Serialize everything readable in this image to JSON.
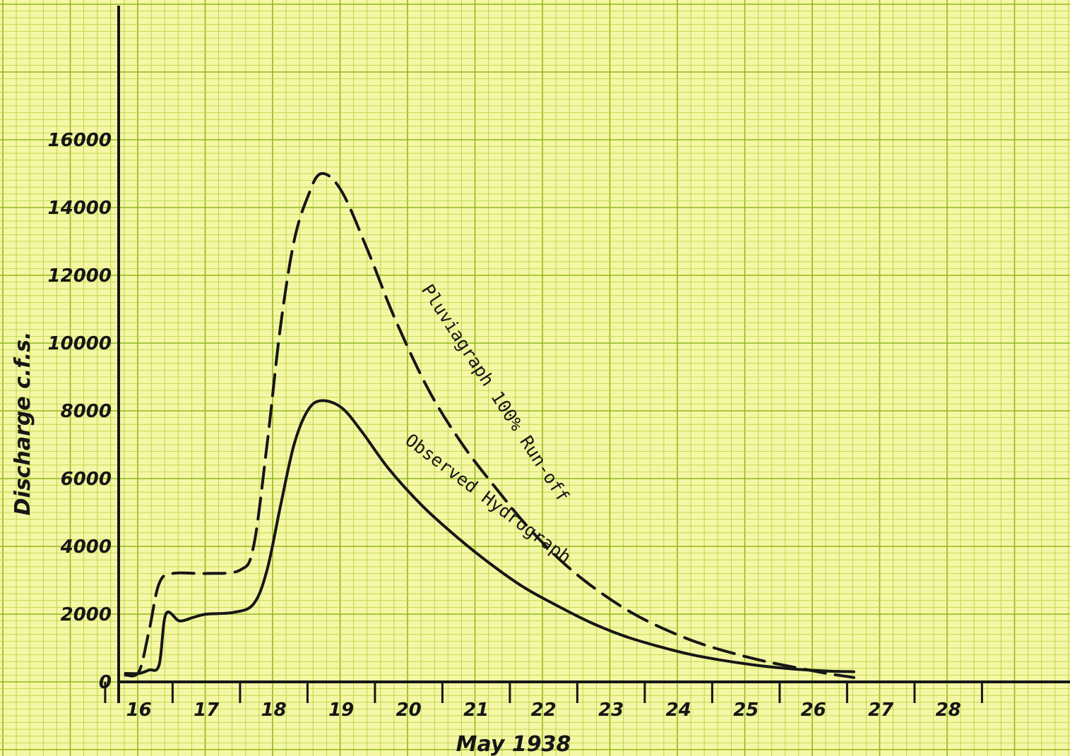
{
  "chart_data": {
    "type": "line",
    "title": "",
    "xlabel": "May 1938",
    "ylabel": "Discharge c.f.s.",
    "x_tick_labels": [
      "16",
      "17",
      "18",
      "19",
      "20",
      "21",
      "22",
      "23",
      "24",
      "25",
      "26",
      "27",
      "28"
    ],
    "y_tick_labels": [
      "0",
      "2000",
      "4000",
      "6000",
      "8000",
      "10000",
      "12000",
      "14000",
      "16000"
    ],
    "xlim": [
      15.7,
      29.0
    ],
    "ylim": [
      0,
      17000
    ],
    "grid": true,
    "legend": "none (curves labelled directly)",
    "colors": {
      "paper": "#f4f7a6",
      "grid_minor": "#b9d13f",
      "grid_major": "#93b61c",
      "ink": "#161616"
    },
    "series": [
      {
        "name": "Pluviagraph 100% Run-off",
        "style": "dashed",
        "points": [
          [
            15.8,
            200
          ],
          [
            16.0,
            300
          ],
          [
            16.15,
            1500
          ],
          [
            16.3,
            2900
          ],
          [
            16.5,
            3200
          ],
          [
            17.0,
            3200
          ],
          [
            17.5,
            3300
          ],
          [
            17.7,
            4000
          ],
          [
            17.9,
            7000
          ],
          [
            18.1,
            10500
          ],
          [
            18.3,
            13000
          ],
          [
            18.5,
            14300
          ],
          [
            18.7,
            15000
          ],
          [
            19.0,
            14500
          ],
          [
            19.4,
            12700
          ],
          [
            19.8,
            10700
          ],
          [
            20.3,
            8600
          ],
          [
            20.8,
            7000
          ],
          [
            21.3,
            5700
          ],
          [
            21.8,
            4500
          ],
          [
            22.3,
            3500
          ],
          [
            22.8,
            2700
          ],
          [
            23.3,
            2050
          ],
          [
            23.8,
            1550
          ],
          [
            24.3,
            1150
          ],
          [
            24.8,
            850
          ],
          [
            25.3,
            600
          ],
          [
            25.8,
            400
          ],
          [
            26.2,
            250
          ],
          [
            26.6,
            130
          ]
        ]
      },
      {
        "name": "Observed Hydrograph",
        "style": "solid",
        "points": [
          [
            15.8,
            250
          ],
          [
            16.0,
            250
          ],
          [
            16.15,
            350
          ],
          [
            16.3,
            500
          ],
          [
            16.4,
            2000
          ],
          [
            16.6,
            1800
          ],
          [
            16.8,
            1900
          ],
          [
            17.0,
            2000
          ],
          [
            17.4,
            2050
          ],
          [
            17.7,
            2300
          ],
          [
            17.9,
            3300
          ],
          [
            18.1,
            5200
          ],
          [
            18.3,
            7000
          ],
          [
            18.5,
            8000
          ],
          [
            18.7,
            8300
          ],
          [
            19.0,
            8100
          ],
          [
            19.3,
            7400
          ],
          [
            19.7,
            6300
          ],
          [
            20.2,
            5200
          ],
          [
            20.7,
            4300
          ],
          [
            21.2,
            3500
          ],
          [
            21.7,
            2800
          ],
          [
            22.2,
            2250
          ],
          [
            22.7,
            1750
          ],
          [
            23.2,
            1350
          ],
          [
            23.7,
            1050
          ],
          [
            24.2,
            800
          ],
          [
            24.7,
            620
          ],
          [
            25.2,
            480
          ],
          [
            25.7,
            380
          ],
          [
            26.2,
            320
          ],
          [
            26.6,
            300
          ]
        ]
      }
    ]
  }
}
